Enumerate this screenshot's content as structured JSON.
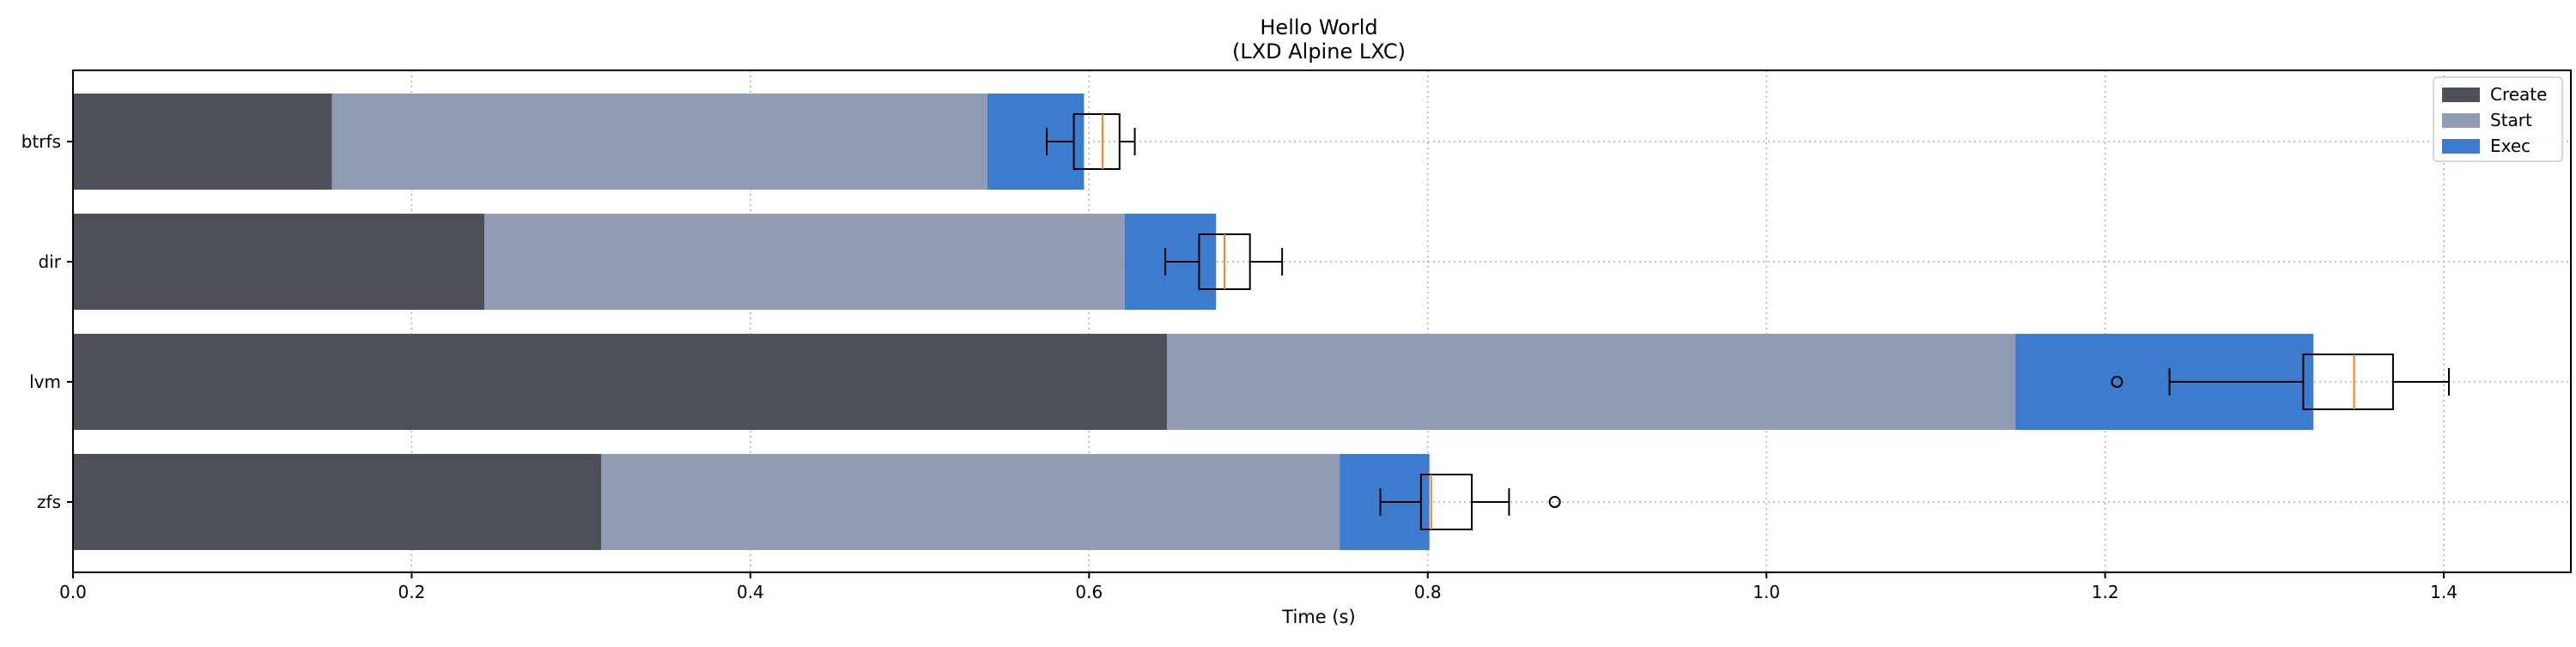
{
  "chart_data": {
    "type": "bar",
    "orientation": "horizontal",
    "stacked": true,
    "title": "Hello World",
    "subtitle": "(LXD Alpine LXC)",
    "xlabel": "Time (s)",
    "ylabel": "",
    "categories": [
      "btrfs",
      "dir",
      "lvm",
      "zfs"
    ],
    "xlim": [
      0,
      1.475
    ],
    "xticks": [
      0.0,
      0.2,
      0.4,
      0.6,
      0.8,
      1.0,
      1.2,
      1.4
    ],
    "xtick_labels": [
      "0.0",
      "0.2",
      "0.4",
      "0.6",
      "0.8",
      "1.0",
      "1.2",
      "1.4"
    ],
    "grid": true,
    "legend": "top-right",
    "series": [
      {
        "name": "Create",
        "color": "#4d5059",
        "values": [
          0.153,
          0.243,
          0.646,
          0.312
        ]
      },
      {
        "name": "Start",
        "color": "#8f9cb3",
        "values": [
          0.387,
          0.378,
          0.501,
          0.436
        ]
      },
      {
        "name": "Exec",
        "color": "#3c7ccf",
        "values": [
          0.057,
          0.054,
          0.176,
          0.053
        ]
      }
    ],
    "boxplots": [
      {
        "category": "btrfs",
        "whisker_low": 0.575,
        "q1": 0.591,
        "median": 0.608,
        "q3": 0.618,
        "whisker_high": 0.627,
        "outliers": []
      },
      {
        "category": "dir",
        "whisker_low": 0.645,
        "q1": 0.665,
        "median": 0.68,
        "q3": 0.695,
        "whisker_high": 0.714,
        "outliers": []
      },
      {
        "category": "lvm",
        "whisker_low": 1.238,
        "q1": 1.317,
        "median": 1.347,
        "q3": 1.37,
        "whisker_high": 1.403,
        "outliers": [
          1.207
        ]
      },
      {
        "category": "zfs",
        "whisker_low": 0.772,
        "q1": 0.796,
        "median": 0.802,
        "q3": 0.826,
        "whisker_high": 0.848,
        "outliers": [
          0.875
        ]
      }
    ]
  }
}
